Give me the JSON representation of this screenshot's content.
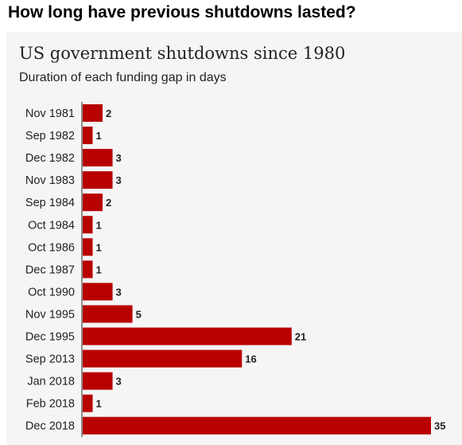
{
  "headline": "How long have previous shutdowns lasted?",
  "colors": {
    "bar": "#b80000",
    "axis": "#222222",
    "panel": "#f5f5f5"
  },
  "chart_data": {
    "type": "bar",
    "orientation": "horizontal",
    "title": "US government shutdowns since 1980",
    "subtitle": "Duration of each funding gap in days",
    "categories": [
      "Nov 1981",
      "Sep 1982",
      "Dec 1982",
      "Nov 1983",
      "Sep 1984",
      "Oct 1984",
      "Oct 1986",
      "Dec 1987",
      "Oct 1990",
      "Nov 1995",
      "Dec 1995",
      "Sep 2013",
      "Jan 2018",
      "Feb 2018",
      "Dec 2018"
    ],
    "values": [
      2,
      1,
      3,
      3,
      2,
      1,
      1,
      1,
      3,
      5,
      21,
      16,
      3,
      1,
      35
    ],
    "xlim": [
      0,
      35
    ],
    "grid": false,
    "data_labels": true
  }
}
